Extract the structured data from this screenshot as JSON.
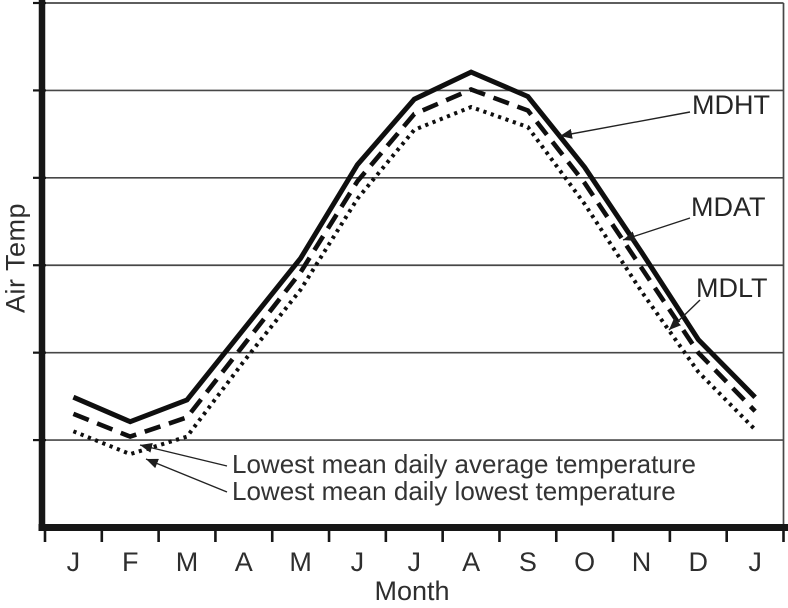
{
  "chart_data": {
    "type": "line",
    "title": "",
    "xlabel": "Month",
    "ylabel": "Air Temp",
    "categories": [
      "J",
      "F",
      "M",
      "A",
      "M",
      "J",
      "J",
      "A",
      "S",
      "O",
      "N",
      "D",
      "J"
    ],
    "ylim": [
      0,
      6
    ],
    "y_tick_labels_visible": false,
    "grid": "horizontal gridlines only, unlabeled",
    "legend_position": "inline labels with leader arrows at right of plot",
    "units_note": "y values in gridline units: bottom axis = 0, each horizontal gridline = +1",
    "series": [
      {
        "name": "MDHT",
        "line_style": "solid",
        "values": [
          1.49,
          1.21,
          1.46,
          2.27,
          3.08,
          4.15,
          4.9,
          5.21,
          4.93,
          4.12,
          3.15,
          2.15,
          1.49
        ]
      },
      {
        "name": "MDAT",
        "line_style": "dashed",
        "values": [
          1.3,
          1.04,
          1.26,
          2.09,
          2.92,
          3.96,
          4.73,
          5.01,
          4.77,
          3.94,
          2.97,
          2.0,
          1.33
        ]
      },
      {
        "name": "MDLT",
        "line_style": "dotted",
        "values": [
          1.1,
          0.84,
          1.04,
          1.9,
          2.72,
          3.76,
          4.55,
          4.81,
          4.58,
          3.7,
          2.7,
          1.78,
          1.12
        ]
      }
    ],
    "annotations": [
      {
        "text": "Lowest mean daily average temperature",
        "arrow_points_to": "February minimum of dashed MDAT curve"
      },
      {
        "text": "Lowest mean daily lowest temperature",
        "arrow_points_to": "February minimum of dotted MDLT curve"
      }
    ]
  },
  "colors": {
    "background": "#ffffff",
    "curve": "#0f0f0f",
    "axis": "#161616",
    "grid": "#474747",
    "text": "#2e2e2e"
  }
}
